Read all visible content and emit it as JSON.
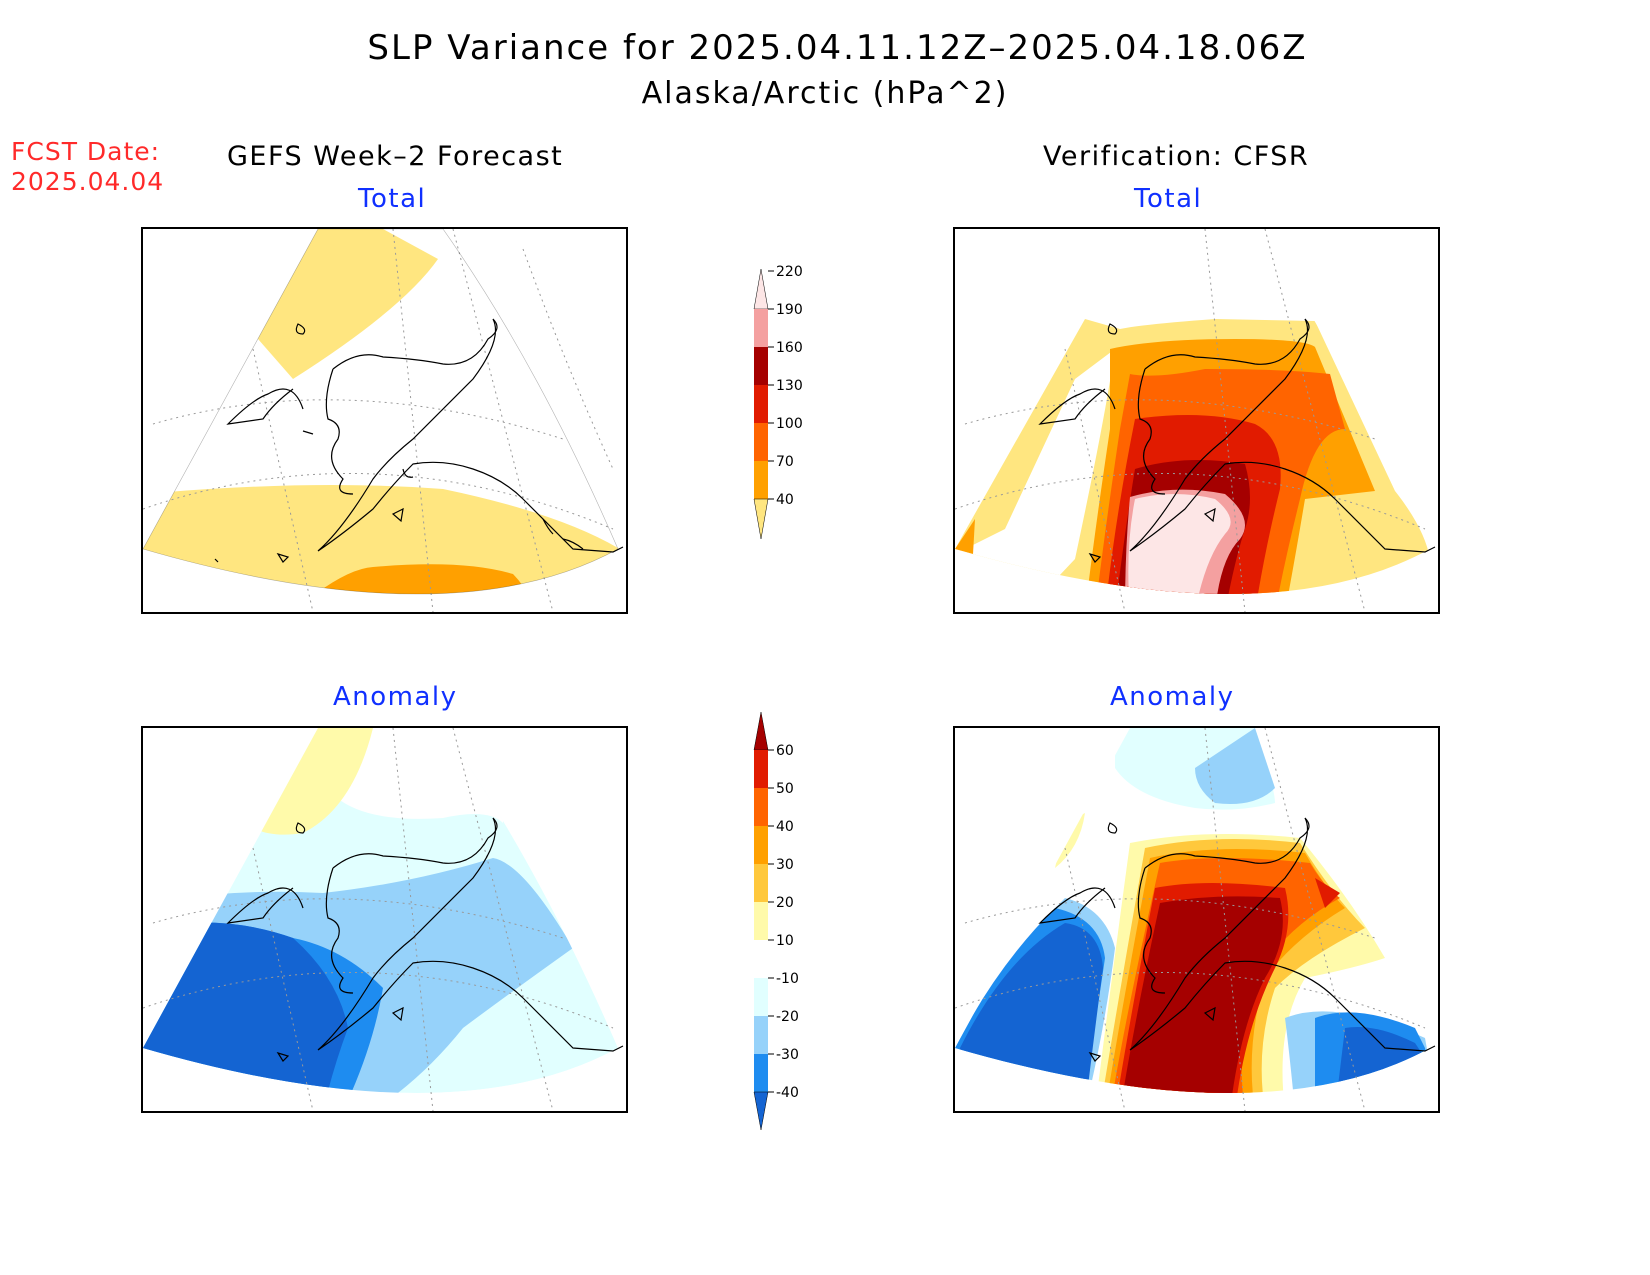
{
  "title": {
    "line1": "SLP Variance for 2025.04.11.12Z–2025.04.18.06Z",
    "line2": "Alaska/Arctic (hPa^2)"
  },
  "forecast_date": {
    "label": "FCST Date:",
    "value": "2025.04.04"
  },
  "columns": {
    "left": "GEFS Week–2 Forecast",
    "right": "Verification: CFSR"
  },
  "panels": {
    "top_left": "Total",
    "top_right": "Total",
    "bottom_left": "Anomaly",
    "bottom_right": "Anomaly"
  },
  "colorbars": {
    "total": {
      "levels": [
        "40",
        "70",
        "100",
        "130",
        "160",
        "190",
        "220"
      ],
      "colors": [
        "#ffe680",
        "#ffa000",
        "#ff6400",
        "#e11b00",
        "#a50000",
        "#f4a0a0",
        "#fde6e6"
      ]
    },
    "anomaly": {
      "levels": [
        "-40",
        "-30",
        "-20",
        "-10",
        "10",
        "20",
        "30",
        "40",
        "50",
        "60"
      ],
      "colors": [
        "#1464d2",
        "#1e8cf0",
        "#96d2fa",
        "#e1ffff",
        "#ffffff",
        "#fffaaa",
        "#ffc83c",
        "#ffa000",
        "#ff6400",
        "#e11b00",
        "#a50000"
      ]
    }
  }
}
